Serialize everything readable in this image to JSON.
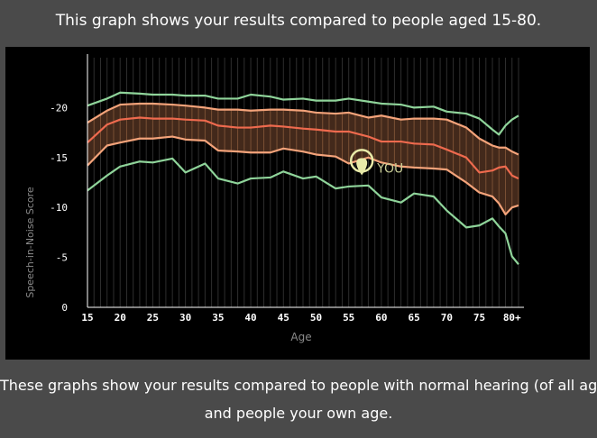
{
  "header": {
    "text": "This graph shows your results compared to people aged 15-80."
  },
  "footer": {
    "line1": "These graphs show your results compared to people with normal hearing (of all ages)",
    "line2": "and people your own age."
  },
  "colors": {
    "background": "#4a4a4a",
    "panel": "#000000",
    "outer_band": "#8fd49a",
    "inner_band": "#f4a37a",
    "median": "#ee6a4e",
    "band_fill": "#4a2d1e",
    "marker": "#e8eaa8",
    "marker_text": "#c7cc95",
    "axis_text": "#ffffff",
    "axis_label": "#8a8a8a"
  },
  "chart_data": {
    "type": "line",
    "xlabel": "Age",
    "ylabel": "Speech-in-Noise Score",
    "ylim": [
      0,
      -25
    ],
    "xlim": [
      15,
      81
    ],
    "x_ticks": [
      {
        "value": 15,
        "label": "15"
      },
      {
        "value": 20,
        "label": "20"
      },
      {
        "value": 25,
        "label": "25"
      },
      {
        "value": 30,
        "label": "30"
      },
      {
        "value": 35,
        "label": "35"
      },
      {
        "value": 40,
        "label": "40"
      },
      {
        "value": 45,
        "label": "45"
      },
      {
        "value": 50,
        "label": "50"
      },
      {
        "value": 55,
        "label": "55"
      },
      {
        "value": 60,
        "label": "60"
      },
      {
        "value": 65,
        "label": "65"
      },
      {
        "value": 70,
        "label": "70"
      },
      {
        "value": 75,
        "label": "75"
      },
      {
        "value": 80,
        "label": "80+"
      }
    ],
    "y_ticks": [
      {
        "value": 0,
        "label": "0"
      },
      {
        "value": -5,
        "label": "-5"
      },
      {
        "value": -10,
        "label": "-10"
      },
      {
        "value": -15,
        "label": "-15"
      },
      {
        "value": -20,
        "label": "-20"
      }
    ],
    "grid": "vertical lines at each age",
    "series": [
      {
        "role": "outer_upper",
        "points": [
          [
            15,
            -20.2
          ],
          [
            18,
            -20.9
          ],
          [
            20,
            -21.5
          ],
          [
            23,
            -21.4
          ],
          [
            25,
            -21.3
          ],
          [
            28,
            -21.3
          ],
          [
            30,
            -21.2
          ],
          [
            33,
            -21.2
          ],
          [
            35,
            -20.9
          ],
          [
            38,
            -20.9
          ],
          [
            40,
            -21.3
          ],
          [
            43,
            -21.1
          ],
          [
            45,
            -20.8
          ],
          [
            48,
            -20.9
          ],
          [
            50,
            -20.7
          ],
          [
            53,
            -20.7
          ],
          [
            55,
            -20.9
          ],
          [
            58,
            -20.6
          ],
          [
            60,
            -20.4
          ],
          [
            63,
            -20.3
          ],
          [
            65,
            -20.0
          ],
          [
            68,
            -20.1
          ],
          [
            70,
            -19.6
          ],
          [
            73,
            -19.4
          ],
          [
            75,
            -18.9
          ],
          [
            77,
            -17.8
          ],
          [
            78,
            -17.3
          ],
          [
            79,
            -18.2
          ],
          [
            80,
            -18.8
          ],
          [
            81,
            -19.2
          ]
        ]
      },
      {
        "role": "inner_upper",
        "points": [
          [
            15,
            -18.5
          ],
          [
            18,
            -19.7
          ],
          [
            20,
            -20.3
          ],
          [
            23,
            -20.4
          ],
          [
            25,
            -20.4
          ],
          [
            28,
            -20.3
          ],
          [
            30,
            -20.2
          ],
          [
            33,
            -20.0
          ],
          [
            35,
            -19.8
          ],
          [
            38,
            -19.8
          ],
          [
            40,
            -19.7
          ],
          [
            43,
            -19.8
          ],
          [
            45,
            -19.8
          ],
          [
            48,
            -19.7
          ],
          [
            50,
            -19.5
          ],
          [
            53,
            -19.4
          ],
          [
            55,
            -19.5
          ],
          [
            58,
            -19.0
          ],
          [
            60,
            -19.2
          ],
          [
            63,
            -18.8
          ],
          [
            65,
            -18.9
          ],
          [
            68,
            -18.9
          ],
          [
            70,
            -18.8
          ],
          [
            73,
            -18.0
          ],
          [
            75,
            -16.9
          ],
          [
            77,
            -16.2
          ],
          [
            78,
            -16.0
          ],
          [
            79,
            -16.0
          ],
          [
            80,
            -15.6
          ],
          [
            81,
            -15.3
          ]
        ]
      },
      {
        "role": "median",
        "points": [
          [
            15,
            -16.5
          ],
          [
            18,
            -18.3
          ],
          [
            20,
            -18.8
          ],
          [
            23,
            -19.0
          ],
          [
            25,
            -18.9
          ],
          [
            28,
            -18.9
          ],
          [
            30,
            -18.8
          ],
          [
            33,
            -18.7
          ],
          [
            35,
            -18.2
          ],
          [
            38,
            -18.0
          ],
          [
            40,
            -18.0
          ],
          [
            43,
            -18.2
          ],
          [
            45,
            -18.1
          ],
          [
            48,
            -17.9
          ],
          [
            50,
            -17.8
          ],
          [
            53,
            -17.6
          ],
          [
            55,
            -17.6
          ],
          [
            58,
            -17.1
          ],
          [
            60,
            -16.6
          ],
          [
            63,
            -16.6
          ],
          [
            65,
            -16.4
          ],
          [
            68,
            -16.3
          ],
          [
            70,
            -15.8
          ],
          [
            73,
            -15.0
          ],
          [
            75,
            -13.5
          ],
          [
            77,
            -13.7
          ],
          [
            78,
            -14.0
          ],
          [
            79,
            -14.1
          ],
          [
            80,
            -13.2
          ],
          [
            81,
            -12.9
          ]
        ]
      },
      {
        "role": "inner_lower",
        "points": [
          [
            15,
            -14.2
          ],
          [
            18,
            -16.2
          ],
          [
            20,
            -16.5
          ],
          [
            23,
            -16.9
          ],
          [
            25,
            -16.9
          ],
          [
            28,
            -17.1
          ],
          [
            30,
            -16.8
          ],
          [
            33,
            -16.7
          ],
          [
            35,
            -15.7
          ],
          [
            38,
            -15.6
          ],
          [
            40,
            -15.5
          ],
          [
            43,
            -15.5
          ],
          [
            45,
            -15.9
          ],
          [
            48,
            -15.6
          ],
          [
            50,
            -15.3
          ],
          [
            53,
            -15.1
          ],
          [
            55,
            -14.4
          ],
          [
            58,
            -15.0
          ],
          [
            60,
            -14.5
          ],
          [
            63,
            -14.1
          ],
          [
            65,
            -14.0
          ],
          [
            68,
            -13.9
          ],
          [
            70,
            -13.8
          ],
          [
            73,
            -12.5
          ],
          [
            75,
            -11.5
          ],
          [
            77,
            -11.1
          ],
          [
            78,
            -10.4
          ],
          [
            79,
            -9.3
          ],
          [
            80,
            -10.0
          ],
          [
            81,
            -10.2
          ]
        ]
      },
      {
        "role": "outer_lower",
        "points": [
          [
            15,
            -11.7
          ],
          [
            18,
            -13.2
          ],
          [
            20,
            -14.1
          ],
          [
            23,
            -14.6
          ],
          [
            25,
            -14.5
          ],
          [
            28,
            -14.9
          ],
          [
            30,
            -13.5
          ],
          [
            33,
            -14.4
          ],
          [
            35,
            -12.9
          ],
          [
            38,
            -12.4
          ],
          [
            40,
            -12.9
          ],
          [
            43,
            -13.0
          ],
          [
            45,
            -13.6
          ],
          [
            48,
            -12.9
          ],
          [
            50,
            -13.1
          ],
          [
            53,
            -11.9
          ],
          [
            55,
            -12.1
          ],
          [
            58,
            -12.2
          ],
          [
            60,
            -11.0
          ],
          [
            63,
            -10.5
          ],
          [
            65,
            -11.4
          ],
          [
            68,
            -11.1
          ],
          [
            70,
            -9.7
          ],
          [
            73,
            -8.0
          ],
          [
            75,
            -8.2
          ],
          [
            77,
            -8.9
          ],
          [
            78,
            -8.1
          ],
          [
            79,
            -7.4
          ],
          [
            80,
            -5.1
          ],
          [
            81,
            -4.3
          ]
        ]
      }
    ],
    "marker": {
      "label": "YOU",
      "x": 57,
      "y": -14.5
    }
  }
}
